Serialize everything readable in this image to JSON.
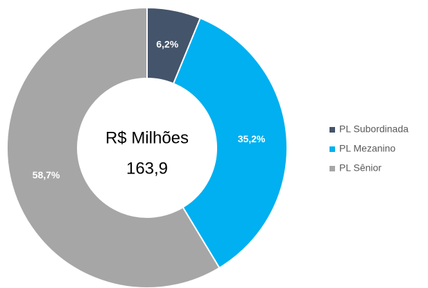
{
  "chart_data": {
    "type": "donut",
    "annotations": [
      "R$ Milhões",
      "163,9"
    ],
    "series": [
      {
        "name": "PL Subordinada",
        "color": "#44546a",
        "values": [
          6.2
        ],
        "value_labels": [
          "6,2%"
        ]
      },
      {
        "name": "PL Mezanino",
        "color": "#00b0f0",
        "values": [
          35.2
        ],
        "value_labels": [
          "35,2%"
        ]
      },
      {
        "name": "PL Sênior",
        "color": "#a6a6a6",
        "values": [
          58.7
        ],
        "value_labels": [
          "58,7%"
        ]
      }
    ],
    "legend": "right"
  }
}
